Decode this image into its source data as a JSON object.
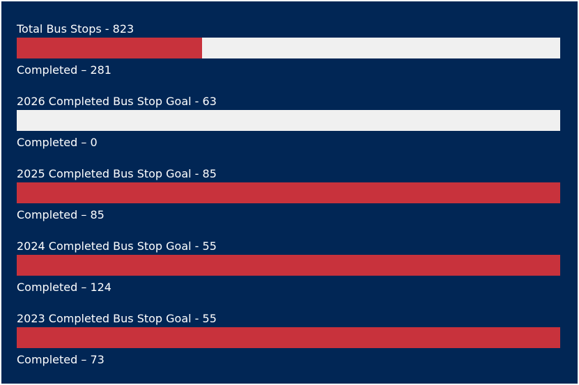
{
  "colors": {
    "background": "#012655",
    "track": "#f0f0f0",
    "fill": "#c8323c",
    "text": "#ffffff"
  },
  "meters": [
    {
      "title": "Total Bus Stops - 823",
      "completed": "Completed – 281",
      "progress": 0.341
    },
    {
      "title": "2026 Completed Bus Stop Goal - 63",
      "completed": "Completed – 0",
      "progress": 0
    },
    {
      "title": "2025 Completed Bus Stop Goal - 85",
      "completed": "Completed – 85",
      "progress": 1
    },
    {
      "title": "2024 Completed Bus Stop Goal - 55",
      "completed": "Completed – 124",
      "progress": 1
    },
    {
      "title": "2023 Completed Bus Stop Goal - 55",
      "completed": "Completed – 73",
      "progress": 1
    }
  ]
}
